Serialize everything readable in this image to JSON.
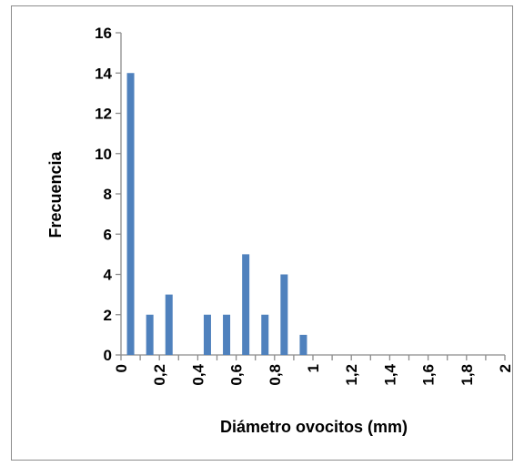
{
  "chart_data": {
    "type": "bar",
    "title": "",
    "xlabel": "Diámetro ovocitos (mm)",
    "ylabel": "Frecuencia",
    "x_tick_labels": [
      "0",
      "0,2",
      "0,4",
      "0,6",
      "0,8",
      "1",
      "1,2",
      "1,4",
      "1,6",
      "1,8",
      "2"
    ],
    "y_tick_labels": [
      "0",
      "2",
      "4",
      "6",
      "8",
      "10",
      "12",
      "14",
      "16"
    ],
    "categories": [
      0.1,
      0.2,
      0.3,
      0.4,
      0.5,
      0.6,
      0.7,
      0.8,
      0.9,
      1.0,
      1.1,
      1.2,
      1.3,
      1.4,
      1.5,
      1.6,
      1.7,
      1.8,
      1.9,
      2.0
    ],
    "values": [
      14,
      2,
      3,
      0,
      2,
      2,
      5,
      2,
      4,
      1,
      0,
      0,
      0,
      0,
      0,
      0,
      0,
      0,
      0,
      0
    ],
    "xlim": [
      0,
      2
    ],
    "ylim": [
      0,
      16
    ],
    "grid": false,
    "legend": "none",
    "bar_color": "#4f81bd",
    "axis_color": "#8c8c8c"
  }
}
